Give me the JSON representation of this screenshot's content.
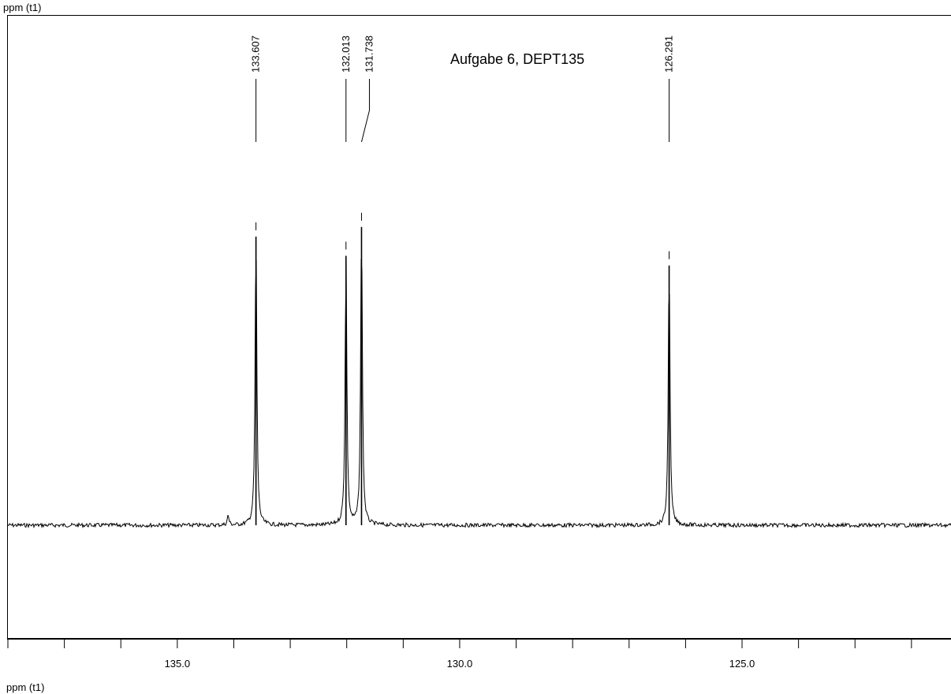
{
  "chart_data": {
    "type": "line",
    "title": "Aufgabe 6, DEPT135",
    "xlabel_top": "ppm (t1)",
    "xlabel": "ppm (t1)",
    "x_reversed": true,
    "xlim": [
      138.0,
      121.3
    ],
    "x_ticks_major": [
      135.0,
      130.0,
      125.0
    ],
    "x_tick_labels": [
      "135.0",
      "130.0",
      "125.0"
    ],
    "x_tick_step_minor": 1.0,
    "ylim": [
      -0.25,
      1.0
    ],
    "grid": false,
    "baseline": 0.0,
    "peaks": [
      {
        "ppm": 133.607,
        "label": "133.607",
        "intensity": 0.9
      },
      {
        "ppm": 132.013,
        "label": "132.013",
        "intensity": 0.84
      },
      {
        "ppm": 131.738,
        "label": "131.738",
        "intensity": 0.93
      },
      {
        "ppm": 126.291,
        "label": "126.291",
        "intensity": 0.81
      }
    ],
    "minor_peaks": [
      {
        "ppm": 134.1,
        "intensity": 0.03
      }
    ]
  }
}
